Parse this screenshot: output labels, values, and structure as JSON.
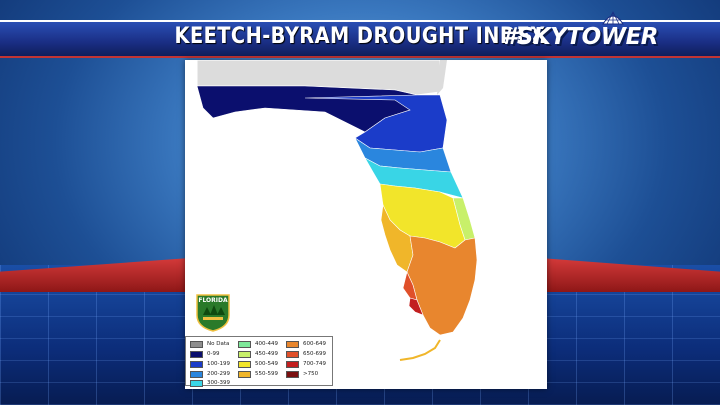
{
  "header": {
    "title": "KEETCH-BYRAM DROUGHT INDEX",
    "brand": "#SKYTOWER"
  },
  "map": {
    "badge_text": "FLORIDA",
    "icon": "florida-forest-service-badge-icon",
    "colors": {
      "no_data": "#8e8e8e",
      "0-99": "#0b0f6e",
      "100-199": "#1b3cc9",
      "200-299": "#2a86de",
      "300-399": "#39d5e6",
      "400-449": "#7ee89a",
      "450-499": "#c8f06a",
      "500-549": "#f2e52a",
      "550-599": "#f0b62a",
      "600-649": "#e8862e",
      "650-699": "#e0502a",
      "700-749": "#c21f1f",
      ">=750": "#7a1010"
    }
  },
  "legend": {
    "items": [
      {
        "label": "No Data",
        "color": "#8e8e8e"
      },
      {
        "label": "0-99",
        "color": "#0b0f6e"
      },
      {
        "label": "100-199",
        "color": "#1b3cc9"
      },
      {
        "label": "200-299",
        "color": "#2a86de"
      },
      {
        "label": "300-399",
        "color": "#39d5e6"
      },
      {
        "label": "400-449",
        "color": "#7ee89a"
      },
      {
        "label": "450-499",
        "color": "#c8f06a"
      },
      {
        "label": "500-549",
        "color": "#f2e52a"
      },
      {
        "label": "550-599",
        "color": "#f0b62a"
      },
      {
        "label": "600-649",
        "color": "#e8862e"
      },
      {
        "label": "650-699",
        "color": "#e0502a"
      },
      {
        "label": "700-749",
        "color": "#c21f1f"
      },
      {
        "label": ">750",
        "color": "#7a1010"
      }
    ]
  }
}
